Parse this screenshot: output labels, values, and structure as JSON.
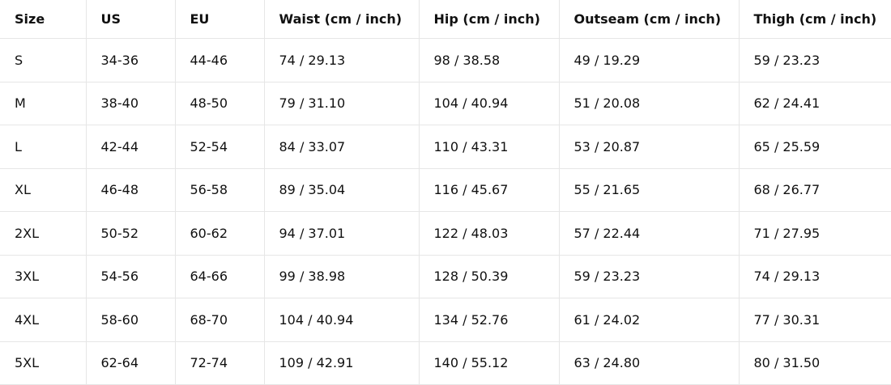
{
  "table": {
    "header": [
      "Size",
      "US",
      "EU",
      "Waist (cm / inch)",
      "Hip (cm / inch)",
      "Outseam (cm / inch)",
      "Thigh (cm / inch)"
    ],
    "rows": [
      [
        "S",
        "34-36",
        "44-46",
        "74 / 29.13",
        "98 / 38.58",
        "49 / 19.29",
        "59 / 23.23"
      ],
      [
        "M",
        "38-40",
        "48-50",
        "79 / 31.10",
        "104 / 40.94",
        "51 / 20.08",
        "62 / 24.41"
      ],
      [
        "L",
        "42-44",
        "52-54",
        "84 / 33.07",
        "110 / 43.31",
        "53 / 20.87",
        "65 / 25.59"
      ],
      [
        "XL",
        "46-48",
        "56-58",
        "89 / 35.04",
        "116 / 45.67",
        "55 / 21.65",
        "68 / 26.77"
      ],
      [
        "2XL",
        "50-52",
        "60-62",
        "94 / 37.01",
        "122 / 48.03",
        "57 / 22.44",
        "71 / 27.95"
      ],
      [
        "3XL",
        "54-56",
        "64-66",
        "99 / 38.98",
        "128 / 50.39",
        "59 / 23.23",
        "74 / 29.13"
      ],
      [
        "4XL",
        "58-60",
        "68-70",
        "104 / 40.94",
        "134 / 52.76",
        "61 / 24.02",
        "77 / 30.31"
      ],
      [
        "5XL",
        "62-64",
        "72-74",
        "109 / 42.91",
        "140 / 55.12",
        "63 / 24.80",
        "80 / 31.50"
      ]
    ]
  }
}
